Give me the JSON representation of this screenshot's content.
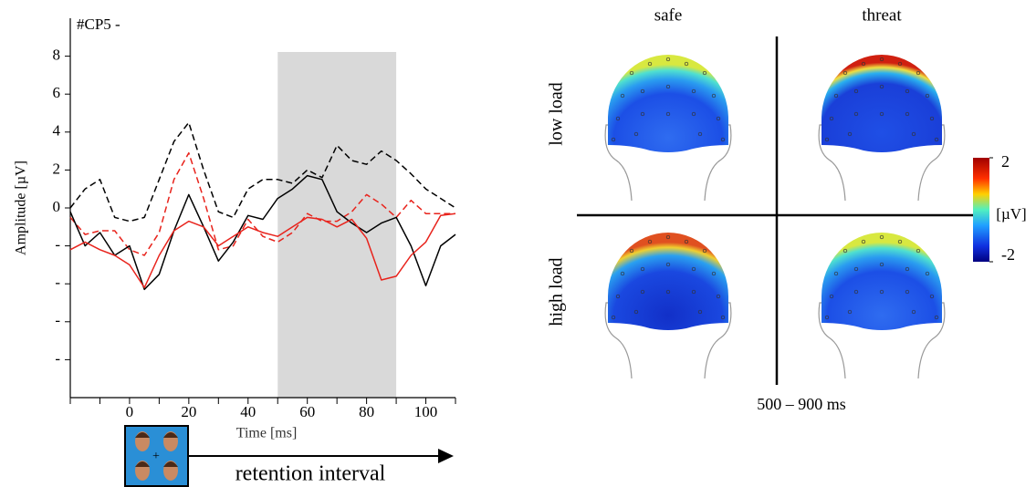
{
  "chart_data": [
    {
      "type": "line",
      "title": "#CP5 -",
      "y_label": "Amplitude [µV]",
      "x_label": "Time [ms]",
      "annotation": "retention interval",
      "x": [
        -20,
        -15,
        -10,
        -5,
        0,
        5,
        10,
        15,
        20,
        25,
        30,
        35,
        40,
        45,
        50,
        55,
        60,
        65,
        70,
        75,
        80,
        85,
        90,
        95,
        100,
        105,
        110
      ],
      "xlim": [
        -20,
        110
      ],
      "xticks": [
        0,
        20,
        40,
        60,
        80,
        100
      ],
      "xminorticks": [
        -20,
        -10,
        10,
        30,
        50,
        70,
        90,
        110
      ],
      "ylim": [
        -10,
        10
      ],
      "yticks": [
        8,
        6,
        4,
        2,
        0,
        {
          "value": -2,
          "label": "-"
        },
        {
          "value": -4,
          "label": "-"
        },
        {
          "value": -6,
          "label": "-"
        },
        {
          "value": -8,
          "label": "-"
        }
      ],
      "shaded_span": [
        50,
        90
      ],
      "shade_color": "#d9d9d9",
      "series": [
        {
          "color": "#000000",
          "dash": true,
          "values": [
            0,
            1,
            1.5,
            -0.5,
            -0.7,
            -0.5,
            1.5,
            3.5,
            4.5,
            2,
            -0.2,
            -0.5,
            1,
            1.5,
            1.5,
            1.3,
            2,
            1.6,
            3.3,
            2.5,
            2.3,
            3,
            2.5,
            1.8,
            1,
            0.5,
            0
          ]
        },
        {
          "color": "#e8231c",
          "dash": true,
          "values": [
            -0.5,
            -1.4,
            -1.2,
            -1.2,
            -2.2,
            -2.5,
            -1.3,
            1.5,
            2.9,
            0.5,
            -2.2,
            -2,
            -0.6,
            -1.5,
            -1.8,
            -1.3,
            -0.3,
            -0.7,
            -0.7,
            -0.2,
            0.7,
            0.2,
            -0.5,
            0.4,
            -0.3,
            -0.3,
            -0.3
          ]
        },
        {
          "color": "#000000",
          "dash": false,
          "values": [
            -0.2,
            -2,
            -1.3,
            -2.5,
            -2,
            -4.3,
            -3.5,
            -1.2,
            0.7,
            -1,
            -2.8,
            -1.8,
            -0.4,
            -0.6,
            0.5,
            1,
            1.7,
            1.5,
            -0.2,
            -0.8,
            -1.3,
            -0.8,
            -0.5,
            -2,
            -4.1,
            -2,
            -1.4
          ]
        },
        {
          "color": "#e8231c",
          "dash": false,
          "values": [
            -2.2,
            -1.8,
            -2.2,
            -2.5,
            -3,
            -4.2,
            -2.5,
            -1.2,
            -0.7,
            -1,
            -2,
            -1.5,
            -1,
            -1.3,
            -1.5,
            -1,
            -0.5,
            -0.6,
            -1,
            -0.6,
            -1.6,
            -3.8,
            -3.6,
            -2.5,
            -1.8,
            -0.4,
            -0.3
          ]
        }
      ]
    },
    {
      "type": "topomap",
      "columns": [
        "safe",
        "threat"
      ],
      "rows": [
        "low load",
        "high load"
      ],
      "caption": "500 – 900 ms",
      "colorbar": {
        "lim": [
          -2,
          2
        ],
        "ticks": [
          2,
          -2
        ],
        "label": "[µV]"
      }
    }
  ]
}
